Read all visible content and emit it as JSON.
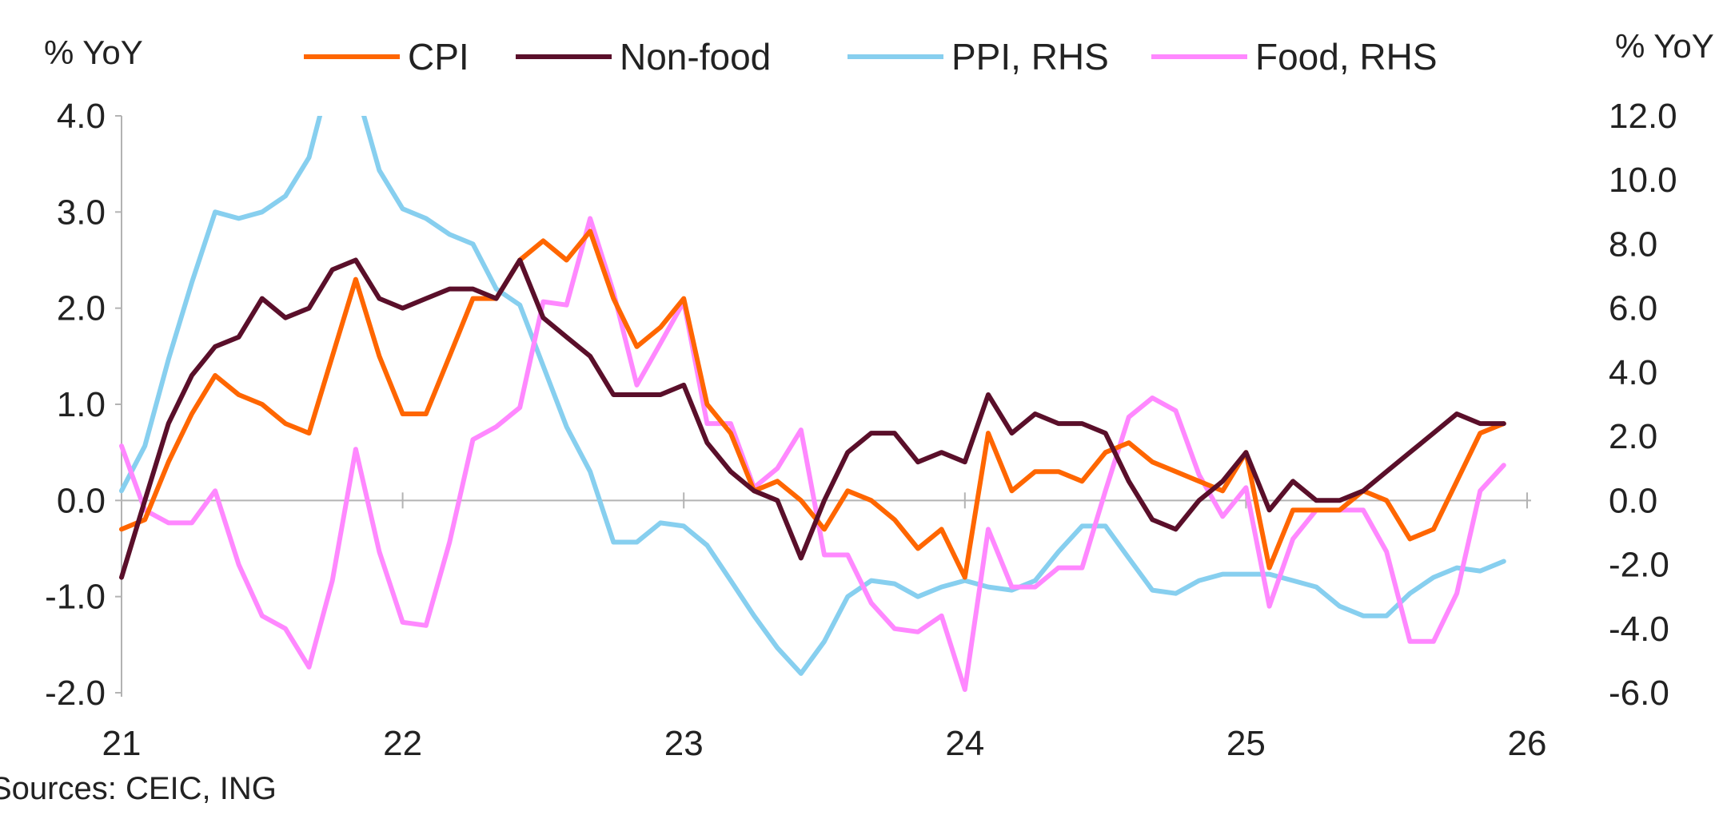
{
  "chart_data": {
    "type": "line",
    "left_axis_label": "% YoY",
    "right_axis_label": "% YoY",
    "source": "Sources: CEIC, ING",
    "x_ticks": [
      "21",
      "22",
      "23",
      "24",
      "25",
      "26"
    ],
    "x_range": [
      2021.0,
      2026.0
    ],
    "ylim_left": [
      -2.0,
      4.0
    ],
    "ylim_right": [
      -6.0,
      12.0
    ],
    "y_ticks_left": [
      "4.0",
      "3.0",
      "2.0",
      "1.0",
      "0.0",
      "-1.0",
      "-2.0"
    ],
    "y_ticks_left_values": [
      4,
      3,
      2,
      1,
      0,
      -1,
      -2
    ],
    "y_ticks_right": [
      "12.0",
      "10.0",
      "8.0",
      "6.0",
      "4.0",
      "2.0",
      "0.0",
      "-2.0",
      "-4.0",
      "-6.0"
    ],
    "y_ticks_right_values": [
      12,
      10,
      8,
      6,
      4,
      2,
      0,
      -2,
      -4,
      -6
    ],
    "zero_line": true,
    "legend_position": "top",
    "series": [
      {
        "name": "CPI",
        "axis": "left",
        "color": "#ff6600",
        "x": [
          2021.0,
          2021.083,
          2021.167,
          2021.25,
          2021.333,
          2021.417,
          2021.5,
          2021.583,
          2021.667,
          2021.75,
          2021.833,
          2021.917,
          2022.0,
          2022.083,
          2022.167,
          2022.25,
          2022.333,
          2022.417,
          2022.5,
          2022.583,
          2022.667,
          2022.75,
          2022.833,
          2022.917,
          2023.0,
          2023.083,
          2023.167,
          2023.25,
          2023.333,
          2023.417,
          2023.5,
          2023.583,
          2023.667,
          2023.75,
          2023.833,
          2023.917,
          2024.0,
          2024.083,
          2024.167,
          2024.25,
          2024.333,
          2024.417,
          2024.5,
          2024.583,
          2024.667,
          2024.75,
          2024.833,
          2024.917,
          2025.0,
          2025.083,
          2025.167,
          2025.25,
          2025.333,
          2025.417,
          2025.5,
          2025.583,
          2025.667,
          2025.75,
          2025.833,
          2025.917
        ],
        "values": [
          -0.3,
          -0.2,
          0.4,
          0.9,
          1.3,
          1.1,
          1.0,
          0.8,
          0.7,
          1.5,
          2.3,
          1.5,
          0.9,
          0.9,
          1.5,
          2.1,
          2.1,
          2.5,
          2.7,
          2.5,
          2.8,
          2.1,
          1.6,
          1.8,
          2.1,
          1.0,
          0.7,
          0.1,
          0.2,
          0.0,
          -0.3,
          0.1,
          0.0,
          -0.2,
          -0.5,
          -0.3,
          -0.8,
          0.7,
          0.1,
          0.3,
          0.3,
          0.2,
          0.5,
          0.6,
          0.4,
          0.3,
          0.2,
          0.1,
          0.5,
          -0.7,
          -0.1,
          -0.1,
          -0.1,
          0.1,
          0.0,
          -0.4,
          -0.3,
          0.2,
          0.7,
          0.8
        ]
      },
      {
        "name": "Non-food",
        "axis": "left",
        "color": "#5a0f2a",
        "x": [
          2021.0,
          2021.083,
          2021.167,
          2021.25,
          2021.333,
          2021.417,
          2021.5,
          2021.583,
          2021.667,
          2021.75,
          2021.833,
          2021.917,
          2022.0,
          2022.083,
          2022.167,
          2022.25,
          2022.333,
          2022.417,
          2022.5,
          2022.583,
          2022.667,
          2022.75,
          2022.833,
          2022.917,
          2023.0,
          2023.083,
          2023.167,
          2023.25,
          2023.333,
          2023.417,
          2023.5,
          2023.583,
          2023.667,
          2023.75,
          2023.833,
          2023.917,
          2024.0,
          2024.083,
          2024.167,
          2024.25,
          2024.333,
          2024.417,
          2024.5,
          2024.583,
          2024.667,
          2024.75,
          2024.833,
          2024.917,
          2025.0,
          2025.083,
          2025.167,
          2025.25,
          2025.333,
          2025.417,
          2025.5,
          2025.583,
          2025.667,
          2025.75,
          2025.833,
          2025.917
        ],
        "values": [
          -0.8,
          0.0,
          0.8,
          1.3,
          1.6,
          1.7,
          2.1,
          1.9,
          2.0,
          2.4,
          2.5,
          2.1,
          2.0,
          2.1,
          2.2,
          2.2,
          2.1,
          2.5,
          1.9,
          1.7,
          1.5,
          1.1,
          1.1,
          1.1,
          1.2,
          0.6,
          0.3,
          0.1,
          0.0,
          -0.6,
          0.0,
          0.5,
          0.7,
          0.7,
          0.4,
          0.5,
          0.4,
          1.1,
          0.7,
          0.9,
          0.8,
          0.8,
          0.7,
          0.2,
          -0.2,
          -0.3,
          0.0,
          0.2,
          0.5,
          -0.1,
          0.2,
          0.0,
          0.0,
          0.1,
          0.3,
          0.5,
          0.7,
          0.9,
          0.8,
          0.8
        ]
      },
      {
        "name": "PPI, RHS",
        "axis": "right",
        "color": "#87cfef",
        "x": [
          2021.0,
          2021.083,
          2021.167,
          2021.25,
          2021.333,
          2021.417,
          2021.5,
          2021.583,
          2021.667,
          2021.75,
          2021.833,
          2021.917,
          2022.0,
          2022.083,
          2022.167,
          2022.25,
          2022.333,
          2022.417,
          2022.5,
          2022.583,
          2022.667,
          2022.75,
          2022.833,
          2022.917,
          2023.0,
          2023.083,
          2023.167,
          2023.25,
          2023.333,
          2023.417,
          2023.5,
          2023.583,
          2023.667,
          2023.75,
          2023.833,
          2023.917,
          2024.0,
          2024.083,
          2024.167,
          2024.25,
          2024.333,
          2024.417,
          2024.5,
          2024.583,
          2024.667,
          2024.75,
          2024.833,
          2024.917,
          2025.0,
          2025.083,
          2025.167,
          2025.25,
          2025.333,
          2025.417,
          2025.5,
          2025.583,
          2025.667,
          2025.75,
          2025.833,
          2025.917
        ],
        "values": [
          0.3,
          1.7,
          4.4,
          6.8,
          9.0,
          8.8,
          9.0,
          9.5,
          10.7,
          13.5,
          12.9,
          10.3,
          9.1,
          8.8,
          8.3,
          8.0,
          6.6,
          6.1,
          4.2,
          2.3,
          0.9,
          -1.3,
          -1.3,
          -0.7,
          -0.8,
          -1.4,
          -2.5,
          -3.6,
          -4.6,
          -5.4,
          -4.4,
          -3.0,
          -2.5,
          -2.6,
          -3.0,
          -2.7,
          -2.5,
          -2.7,
          -2.8,
          -2.5,
          -1.6,
          -0.8,
          -0.8,
          -1.8,
          -2.8,
          -2.9,
          -2.5,
          -2.3,
          -2.3,
          -2.3,
          -2.5,
          -2.7,
          -3.3,
          -3.6,
          -3.6,
          -2.9,
          -2.4,
          -2.1,
          -2.2,
          -1.9
        ]
      },
      {
        "name": "Food, RHS",
        "axis": "right",
        "color": "#ff88ff",
        "x": [
          2021.0,
          2021.083,
          2021.167,
          2021.25,
          2021.333,
          2021.417,
          2021.5,
          2021.583,
          2021.667,
          2021.75,
          2021.833,
          2021.917,
          2022.0,
          2022.083,
          2022.167,
          2022.25,
          2022.333,
          2022.417,
          2022.5,
          2022.583,
          2022.667,
          2022.75,
          2022.833,
          2022.917,
          2023.0,
          2023.083,
          2023.167,
          2023.25,
          2023.333,
          2023.417,
          2023.5,
          2023.583,
          2023.667,
          2023.75,
          2023.833,
          2023.917,
          2024.0,
          2024.083,
          2024.167,
          2024.25,
          2024.333,
          2024.417,
          2024.5,
          2024.583,
          2024.667,
          2024.75,
          2024.833,
          2024.917,
          2025.0,
          2025.083,
          2025.167,
          2025.25,
          2025.333,
          2025.417,
          2025.5,
          2025.583,
          2025.667,
          2025.75,
          2025.833,
          2025.917
        ],
        "values": [
          1.7,
          -0.3,
          -0.7,
          -0.7,
          0.3,
          -2.0,
          -3.6,
          -4.0,
          -5.2,
          -2.5,
          1.6,
          -1.6,
          -3.8,
          -3.9,
          -1.3,
          1.9,
          2.3,
          2.9,
          6.2,
          6.1,
          8.8,
          6.5,
          3.6,
          4.9,
          6.2,
          2.4,
          2.4,
          0.4,
          1.0,
          2.2,
          -1.7,
          -1.7,
          -3.2,
          -4.0,
          -4.1,
          -3.6,
          -5.9,
          -0.9,
          -2.7,
          -2.7,
          -2.1,
          -2.1,
          0.3,
          2.6,
          3.2,
          2.8,
          0.8,
          -0.5,
          0.4,
          -3.3,
          -1.2,
          -0.3,
          -0.3,
          -0.3,
          -1.6,
          -4.4,
          -4.4,
          -2.9,
          0.3,
          1.1
        ]
      }
    ]
  }
}
